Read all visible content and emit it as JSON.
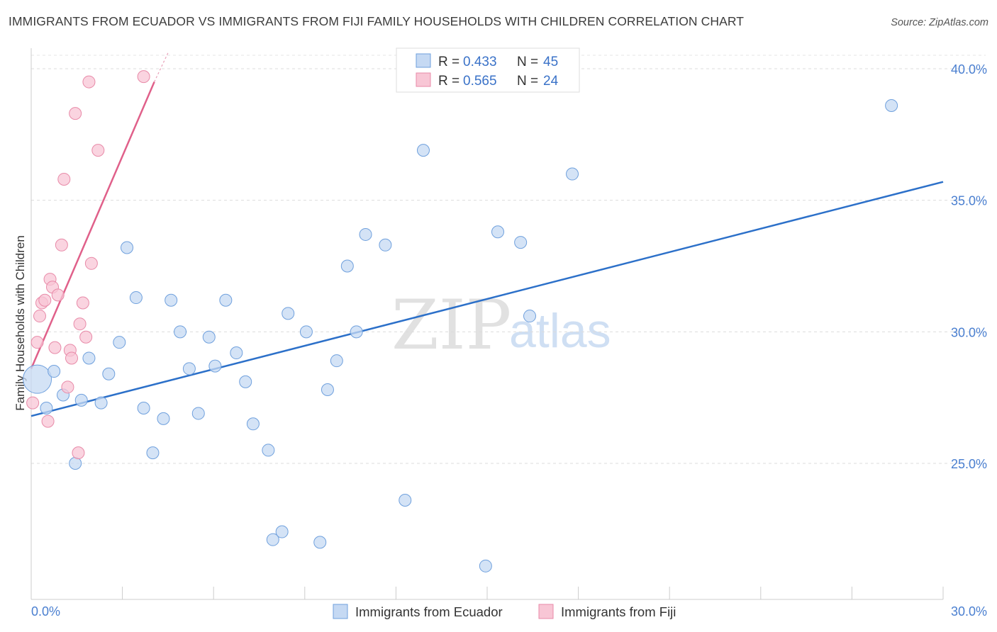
{
  "title": "IMMIGRANTS FROM ECUADOR VS IMMIGRANTS FROM FIJI FAMILY HOUSEHOLDS WITH CHILDREN CORRELATION CHART",
  "source": "Source: ZipAtlas.com",
  "watermark": {
    "zip": "ZIP",
    "atlas": "atlas"
  },
  "legend": {
    "rows": [
      {
        "r_label": "R =",
        "r_value": "0.433",
        "n_label": "N =",
        "n_value": "45"
      },
      {
        "r_label": "R =",
        "r_value": "0.565",
        "n_label": "N =",
        "n_value": "24"
      }
    ]
  },
  "chart_data": {
    "type": "scatter",
    "title": "IMMIGRANTS FROM ECUADOR VS IMMIGRANTS FROM FIJI FAMILY HOUSEHOLDS WITH CHILDREN CORRELATION CHART",
    "xlabel": "",
    "ylabel": "Family Households with Children",
    "xlim": [
      0,
      30
    ],
    "ylim": [
      20,
      40.5
    ],
    "x_tick_labels": [
      "0.0%",
      "30.0%"
    ],
    "x_minor_ticks": [
      0,
      3,
      6,
      9,
      12,
      15,
      18,
      21,
      24,
      27,
      30
    ],
    "y_ticks": [
      25,
      30,
      35,
      40
    ],
    "y_tick_labels": [
      "25.0%",
      "30.0%",
      "35.0%",
      "40.0%"
    ],
    "grid": "horizontal dashed",
    "legend_position": "top-center",
    "series": [
      {
        "name": "Immigrants from Ecuador",
        "color": "#6fa0dd",
        "fill": "#c5d9f3",
        "line_color": "#2c70c9",
        "R": 0.433,
        "N": 45,
        "trend": {
          "x": [
            0,
            30
          ],
          "y": [
            26.8,
            35.7
          ]
        },
        "points": [
          {
            "x": 0.2,
            "y": 28.2,
            "big": true
          },
          {
            "x": 0.5,
            "y": 27.1
          },
          {
            "x": 0.75,
            "y": 28.5
          },
          {
            "x": 1.05,
            "y": 27.6
          },
          {
            "x": 1.45,
            "y": 25.0
          },
          {
            "x": 1.65,
            "y": 27.4
          },
          {
            "x": 1.9,
            "y": 29.0
          },
          {
            "x": 2.3,
            "y": 27.3
          },
          {
            "x": 2.55,
            "y": 28.4
          },
          {
            "x": 2.9,
            "y": 29.6
          },
          {
            "x": 3.15,
            "y": 33.2
          },
          {
            "x": 3.45,
            "y": 31.3
          },
          {
            "x": 3.7,
            "y": 27.1
          },
          {
            "x": 4.0,
            "y": 25.4
          },
          {
            "x": 4.35,
            "y": 26.7
          },
          {
            "x": 4.6,
            "y": 31.2
          },
          {
            "x": 4.9,
            "y": 30.0
          },
          {
            "x": 5.2,
            "y": 28.6
          },
          {
            "x": 5.5,
            "y": 26.9
          },
          {
            "x": 5.85,
            "y": 29.8
          },
          {
            "x": 6.05,
            "y": 28.7
          },
          {
            "x": 6.4,
            "y": 31.2
          },
          {
            "x": 6.75,
            "y": 29.2
          },
          {
            "x": 7.05,
            "y": 28.1
          },
          {
            "x": 7.3,
            "y": 26.5
          },
          {
            "x": 7.8,
            "y": 25.5
          },
          {
            "x": 7.95,
            "y": 22.1
          },
          {
            "x": 8.25,
            "y": 22.4
          },
          {
            "x": 8.45,
            "y": 30.7
          },
          {
            "x": 9.05,
            "y": 30.0
          },
          {
            "x": 9.5,
            "y": 22.0
          },
          {
            "x": 9.75,
            "y": 27.8
          },
          {
            "x": 10.05,
            "y": 28.9
          },
          {
            "x": 10.4,
            "y": 32.5
          },
          {
            "x": 10.7,
            "y": 30.0
          },
          {
            "x": 11.0,
            "y": 33.7
          },
          {
            "x": 11.65,
            "y": 33.3
          },
          {
            "x": 12.3,
            "y": 23.6
          },
          {
            "x": 12.9,
            "y": 36.9
          },
          {
            "x": 14.95,
            "y": 21.1
          },
          {
            "x": 15.35,
            "y": 33.8
          },
          {
            "x": 16.1,
            "y": 33.4
          },
          {
            "x": 16.4,
            "y": 30.6
          },
          {
            "x": 17.8,
            "y": 36.0
          },
          {
            "x": 28.3,
            "y": 38.6
          }
        ]
      },
      {
        "name": "Immigrants from Fiji",
        "color": "#e88aa8",
        "fill": "#f8c6d5",
        "line_color": "#e0608a",
        "R": 0.565,
        "N": 24,
        "trend": {
          "x": [
            0,
            4.05
          ],
          "y": [
            28.6,
            39.5
          ]
        },
        "trend_ext": {
          "x": [
            4.05,
            4.5
          ],
          "y": [
            39.5,
            40.6
          ]
        },
        "points": [
          {
            "x": 0.05,
            "y": 27.3
          },
          {
            "x": 0.2,
            "y": 29.6
          },
          {
            "x": 0.28,
            "y": 30.6
          },
          {
            "x": 0.35,
            "y": 31.1
          },
          {
            "x": 0.45,
            "y": 31.2
          },
          {
            "x": 0.55,
            "y": 26.6
          },
          {
            "x": 0.62,
            "y": 32.0
          },
          {
            "x": 0.7,
            "y": 31.7
          },
          {
            "x": 0.78,
            "y": 29.4
          },
          {
            "x": 0.88,
            "y": 31.4
          },
          {
            "x": 1.0,
            "y": 33.3
          },
          {
            "x": 1.08,
            "y": 35.8
          },
          {
            "x": 1.2,
            "y": 27.9
          },
          {
            "x": 1.28,
            "y": 29.3
          },
          {
            "x": 1.33,
            "y": 29.0
          },
          {
            "x": 1.45,
            "y": 38.3
          },
          {
            "x": 1.55,
            "y": 25.4
          },
          {
            "x": 1.6,
            "y": 30.3
          },
          {
            "x": 1.7,
            "y": 31.1
          },
          {
            "x": 1.8,
            "y": 29.8
          },
          {
            "x": 1.9,
            "y": 39.5
          },
          {
            "x": 1.98,
            "y": 32.6
          },
          {
            "x": 2.2,
            "y": 36.9
          },
          {
            "x": 3.7,
            "y": 39.7
          }
        ]
      }
    ]
  }
}
